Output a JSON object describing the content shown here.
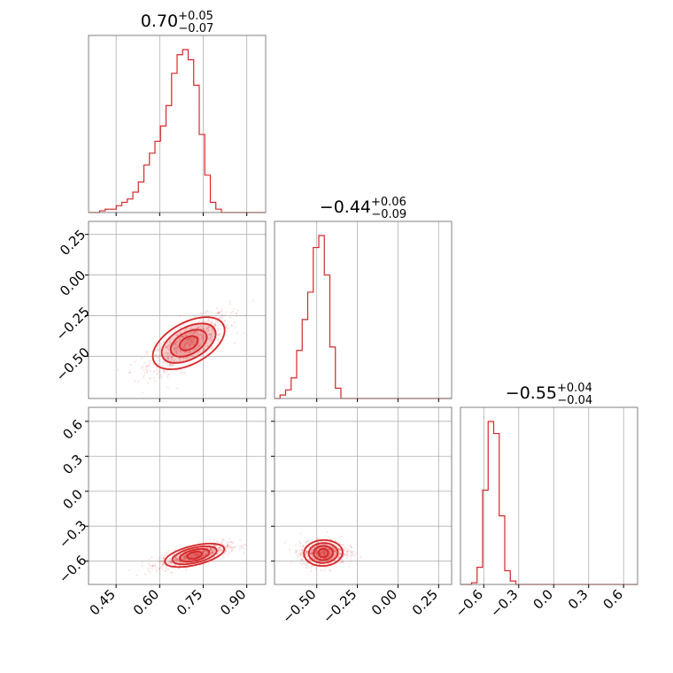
{
  "chart_data": {
    "type": "corner",
    "color": "#d62728",
    "grid": true,
    "parameters": [
      {
        "title_value": "0.70",
        "title_plus": "+0.05",
        "title_minus": "−0.07",
        "range": [
          0.355,
          0.965
        ],
        "ticks": [
          0.45,
          0.6,
          0.75,
          0.9
        ],
        "tick_labels": [
          "0.45",
          "0.60",
          "0.75",
          "0.90"
        ],
        "hist": [
          0.0,
          0.0,
          0.01,
          0.02,
          0.02,
          0.04,
          0.06,
          0.08,
          0.12,
          0.18,
          0.28,
          0.35,
          0.42,
          0.51,
          0.63,
          0.82,
          0.93,
          0.96,
          0.9,
          0.75,
          0.46,
          0.22,
          0.06,
          0.02,
          0.0,
          0.0,
          0.0,
          0.0,
          0.0,
          0.0,
          0.0,
          0.0
        ]
      },
      {
        "title_value": "−0.44",
        "title_plus": "+0.06",
        "title_minus": "−0.09",
        "range": [
          -0.76,
          0.33
        ],
        "ticks": [
          -0.5,
          -0.25,
          0.0,
          0.25
        ],
        "tick_labels": [
          "−0.50",
          "−0.25",
          "0.00",
          "0.25"
        ],
        "hist": [
          0.0,
          0.02,
          0.05,
          0.12,
          0.28,
          0.46,
          0.62,
          0.88,
          0.95,
          0.72,
          0.3,
          0.06,
          0.0,
          0.0,
          0.0,
          0.0,
          0.0,
          0.0,
          0.0,
          0.0,
          0.0,
          0.0,
          0.0,
          0.0,
          0.0,
          0.0,
          0.0,
          0.0,
          0.0,
          0.0,
          0.0,
          0.0
        ]
      },
      {
        "title_value": "−0.55",
        "title_plus": "+0.04",
        "title_minus": "−0.04",
        "range": [
          -0.8,
          0.72
        ],
        "ticks": [
          -0.6,
          -0.3,
          0.0,
          0.3,
          0.6
        ],
        "tick_labels": [
          "−0.6",
          "−0.3",
          "0.0",
          "0.3",
          "0.6"
        ],
        "hist": [
          0.0,
          0.0,
          0.01,
          0.1,
          0.55,
          0.95,
          0.88,
          0.4,
          0.08,
          0.02,
          0.0,
          0.0,
          0.0,
          0.0,
          0.0,
          0.0,
          0.0,
          0.0,
          0.0,
          0.0,
          0.0,
          0.0,
          0.0,
          0.0,
          0.0,
          0.0,
          0.0,
          0.0,
          0.0,
          0.0,
          0.0,
          0.0
        ]
      }
    ],
    "pairs": [
      {
        "x_param": 0,
        "y_param": 1,
        "center": [
          0.7,
          -0.42
        ],
        "spread": [
          0.07,
          0.09
        ],
        "correlation": 0.75
      },
      {
        "x_param": 0,
        "y_param": 2,
        "center": [
          0.72,
          -0.55
        ],
        "spread": [
          0.06,
          0.05
        ],
        "correlation": 0.7
      },
      {
        "x_param": 1,
        "y_param": 2,
        "center": [
          -0.46,
          -0.53
        ],
        "spread": [
          0.07,
          0.05
        ],
        "correlation": 0.1
      }
    ]
  }
}
